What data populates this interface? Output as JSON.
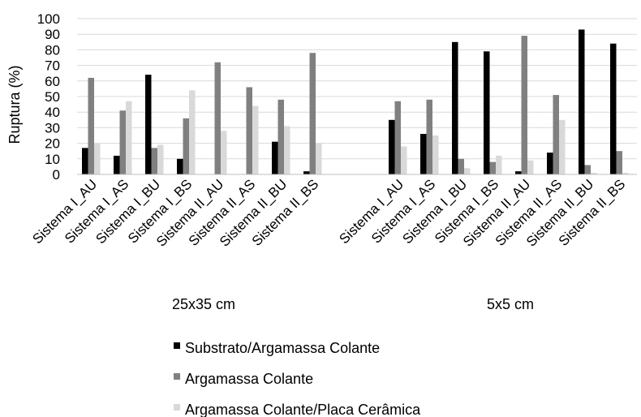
{
  "chart_data": {
    "type": "bar",
    "ylabel": "Ruptura (%)",
    "ylim": [
      0,
      100
    ],
    "yticks": [
      0,
      10,
      20,
      30,
      40,
      50,
      60,
      70,
      80,
      90,
      100
    ],
    "grid": "horizontal",
    "legend_placement": "bottom",
    "groups": [
      {
        "label": "25x35 cm",
        "categories": [
          "Sistema I_AU",
          "Sistema I_AS",
          "Sistema I_BU",
          "Sistema I_BS",
          "Sistema II_AU",
          "Sistema II_AS",
          "Sistema II_BU",
          "Sistema II_BS"
        ]
      },
      {
        "label": "5x5 cm",
        "categories": [
          "Sistema I_AU",
          "Sistema I_AS",
          "Sistema I_BU",
          "Sistema I_BS",
          "Sistema II_AU",
          "Sistema II_AS",
          "Sistema II_BU",
          "Sistema II_BS"
        ]
      }
    ],
    "series": [
      {
        "name": "Substrato/Argamassa Colante",
        "color": "#000000",
        "values": [
          [
            17,
            12,
            64,
            10,
            0,
            0,
            21,
            2
          ],
          [
            35,
            26,
            85,
            79,
            2,
            14,
            93,
            84
          ]
        ]
      },
      {
        "name": "Argamassa Colante",
        "color": "#808080",
        "values": [
          [
            62,
            41,
            17,
            36,
            72,
            56,
            48,
            78
          ],
          [
            47,
            48,
            10,
            8,
            89,
            51,
            6,
            15
          ]
        ]
      },
      {
        "name": "Argamassa Colante/Placa Cerâmica",
        "color": "#d9d9d9",
        "values": [
          [
            20,
            47,
            19,
            54,
            28,
            44,
            31,
            20
          ],
          [
            18,
            25,
            4,
            12,
            9,
            35,
            1,
            1
          ]
        ]
      }
    ]
  }
}
